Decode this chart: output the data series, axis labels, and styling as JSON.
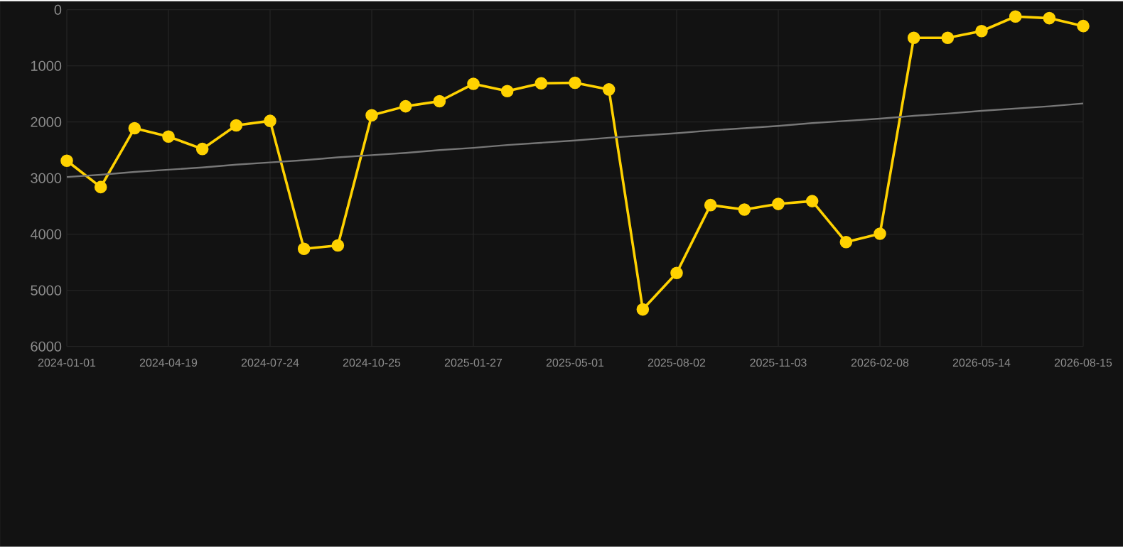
{
  "chart_data": {
    "type": "line",
    "categories": [
      "2024-01-01",
      null,
      null,
      "2024-04-19",
      null,
      null,
      "2024-07-24",
      null,
      null,
      "2024-10-25",
      null,
      null,
      "2025-01-27",
      null,
      null,
      "2025-05-01",
      null,
      null,
      "2025-08-02",
      null,
      null,
      "2025-11-03",
      null,
      null,
      "2026-02-08",
      null,
      null,
      "2026-05-14",
      null,
      null,
      "2026-08-15"
    ],
    "series": [
      {
        "color": "#ffd200",
        "values": [
          2690,
          3160,
          2110,
          2260,
          2480,
          2060,
          1980,
          4260,
          4200,
          1880,
          1720,
          1630,
          1320,
          1450,
          1310,
          1300,
          1420,
          5340,
          4690,
          3480,
          3560,
          3460,
          3410,
          4140,
          3990,
          500,
          500,
          380,
          120,
          150,
          290
        ]
      },
      {
        "type": "line",
        "color": "#777777",
        "marker": "none",
        "values": [
          2980,
          2940,
          2890,
          2850,
          2810,
          2760,
          2720,
          2680,
          2630,
          2590,
          2550,
          2500,
          2460,
          2410,
          2370,
          2330,
          2280,
          2240,
          2200,
          2150,
          2110,
          2070,
          2020,
          1980,
          1940,
          1890,
          1850,
          1800,
          1760,
          1720,
          1670
        ]
      }
    ],
    "ylim": [
      6000,
      0
    ],
    "yticks": [
      0,
      1000,
      2000,
      3000,
      4000,
      5000,
      6000
    ],
    "grid": true,
    "marker": "circle",
    "line_style": "solid",
    "legend": false
  }
}
